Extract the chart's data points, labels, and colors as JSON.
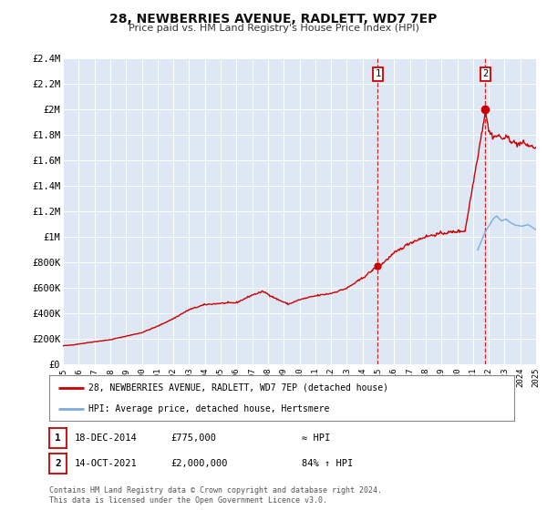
{
  "title": "28, NEWBERRIES AVENUE, RADLETT, WD7 7EP",
  "subtitle": "Price paid vs. HM Land Registry's House Price Index (HPI)",
  "ylim": [
    0,
    2400000
  ],
  "xlim": [
    1995,
    2025
  ],
  "yticks": [
    0,
    200000,
    400000,
    600000,
    800000,
    1000000,
    1200000,
    1400000,
    1600000,
    1800000,
    2000000,
    2200000,
    2400000
  ],
  "ytick_labels": [
    "£0",
    "£200K",
    "£400K",
    "£600K",
    "£800K",
    "£1M",
    "£1.2M",
    "£1.4M",
    "£1.6M",
    "£1.8M",
    "£2M",
    "£2.2M",
    "£2.4M"
  ],
  "xticks": [
    1995,
    1996,
    1997,
    1998,
    1999,
    2000,
    2001,
    2002,
    2003,
    2004,
    2005,
    2006,
    2007,
    2008,
    2009,
    2010,
    2011,
    2012,
    2013,
    2014,
    2015,
    2016,
    2017,
    2018,
    2019,
    2020,
    2021,
    2022,
    2023,
    2024,
    2025
  ],
  "bg_color": "#dde8f4",
  "red_line_color": "#cc0000",
  "blue_line_color": "#7aacdc",
  "marker1_x": 2014.97,
  "marker1_y": 775000,
  "marker2_x": 2021.79,
  "marker2_y": 2000000,
  "vline1_x": 2014.97,
  "vline2_x": 2021.79,
  "legend_label_red": "28, NEWBERRIES AVENUE, RADLETT, WD7 7EP (detached house)",
  "legend_label_blue": "HPI: Average price, detached house, Hertsmere",
  "footnote1": "Contains HM Land Registry data © Crown copyright and database right 2024.",
  "footnote2": "This data is licensed under the Open Government Licence v3.0.",
  "sale1_date": "18-DEC-2014",
  "sale1_price": "£775,000",
  "sale1_hpi": "≈ HPI",
  "sale2_date": "14-OCT-2021",
  "sale2_price": "£2,000,000",
  "sale2_hpi": "84% ↑ HPI"
}
